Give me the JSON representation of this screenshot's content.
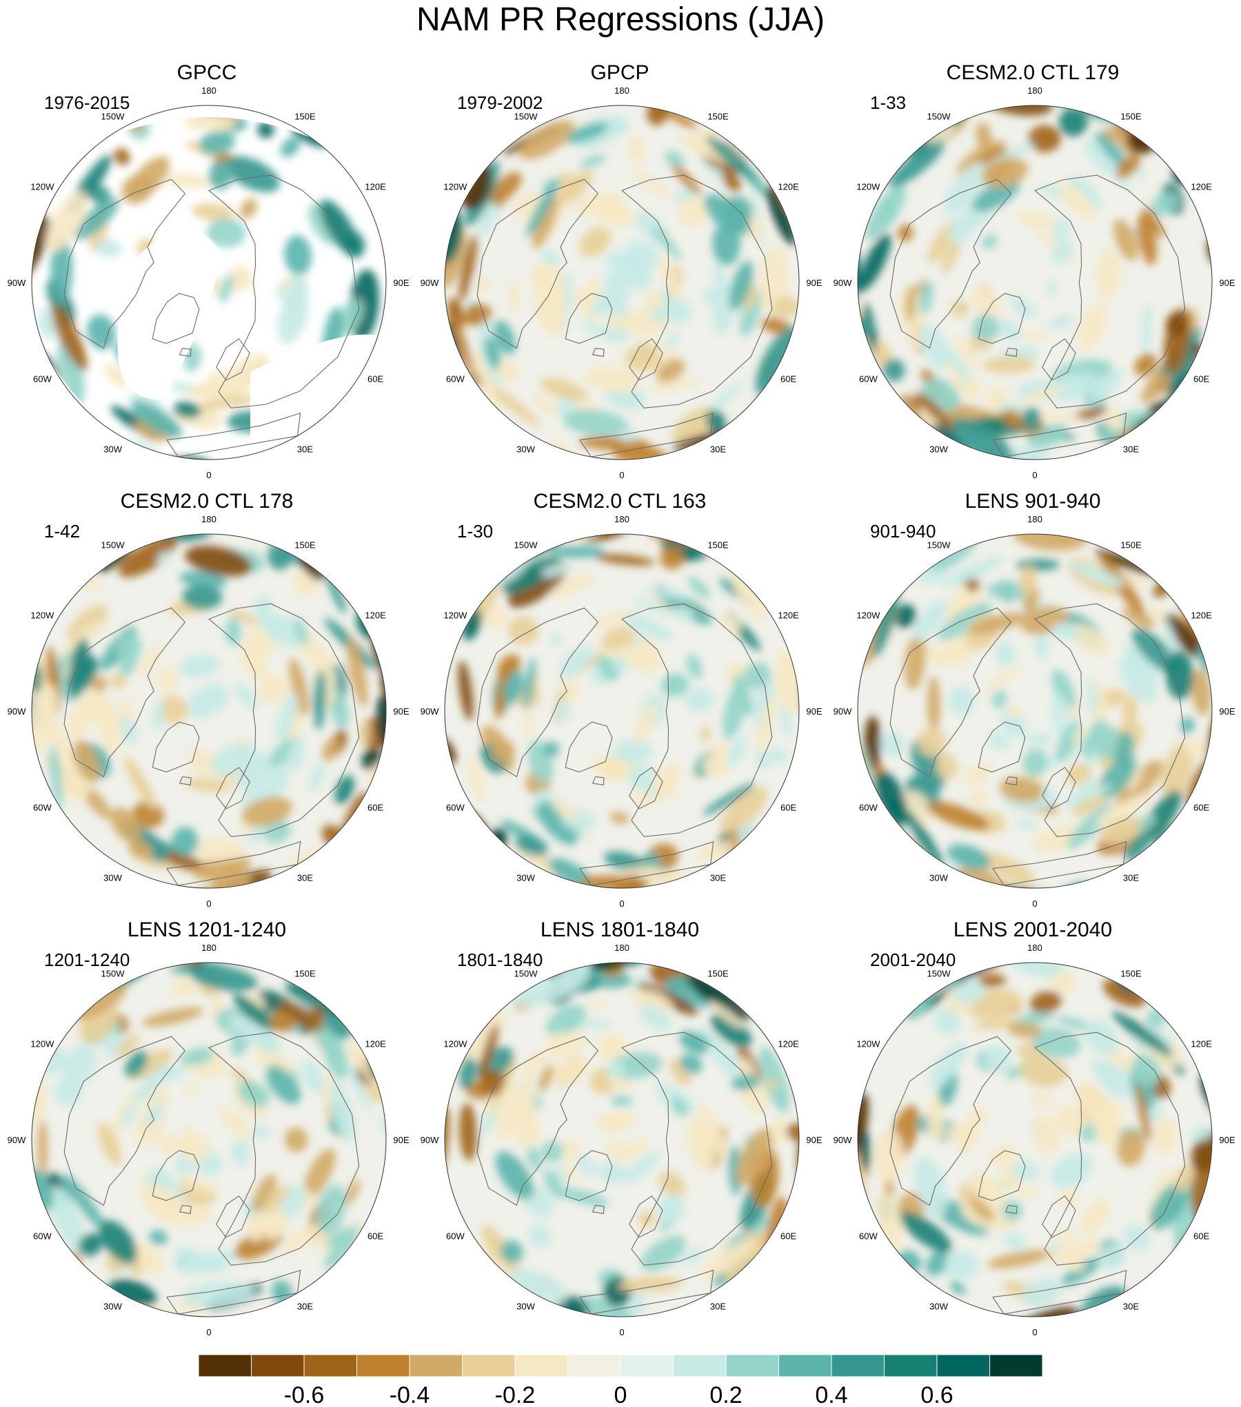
{
  "title": "NAM PR Regressions (JJA)",
  "panels": [
    {
      "id": "gpcc",
      "title": "GPCC",
      "period": "1976-2015",
      "masked": true,
      "seed": 11
    },
    {
      "id": "gpcp",
      "title": "GPCP",
      "period": "1979-2002",
      "masked": false,
      "seed": 23
    },
    {
      "id": "ctl179",
      "title": "CESM2.0 CTL 179",
      "period": "1-33",
      "masked": false,
      "seed": 37
    },
    {
      "id": "ctl178",
      "title": "CESM2.0 CTL 178",
      "period": "1-42",
      "masked": false,
      "seed": 41
    },
    {
      "id": "ctl163",
      "title": "CESM2.0 CTL 163",
      "period": "1-30",
      "masked": false,
      "seed": 53
    },
    {
      "id": "lens901",
      "title": "LENS 901-940",
      "period": "901-940",
      "masked": false,
      "seed": 67
    },
    {
      "id": "lens1201",
      "title": "LENS 1201-1240",
      "period": "1201-1240",
      "masked": false,
      "seed": 71
    },
    {
      "id": "lens1801",
      "title": "LENS 1801-1840",
      "period": "1801-1840",
      "masked": false,
      "seed": 83
    },
    {
      "id": "lens2001",
      "title": "LENS 2001-2040",
      "period": "2001-2040",
      "masked": false,
      "seed": 97
    }
  ],
  "longitude_labels": [
    {
      "text": "180",
      "lon": 180
    },
    {
      "text": "150E",
      "lon": 150
    },
    {
      "text": "120E",
      "lon": 120
    },
    {
      "text": "90E",
      "lon": 90
    },
    {
      "text": "60E",
      "lon": 60
    },
    {
      "text": "30E",
      "lon": 30
    },
    {
      "text": "0",
      "lon": 0
    },
    {
      "text": "30W",
      "lon": -30
    },
    {
      "text": "60W",
      "lon": -60
    },
    {
      "text": "90W",
      "lon": -90
    },
    {
      "text": "120W",
      "lon": -120
    },
    {
      "text": "150W",
      "lon": -150
    }
  ],
  "colorbar": {
    "colors": [
      "#543005",
      "#7f4a0c",
      "#a0631a",
      "#bf812d",
      "#d2a966",
      "#e8cf98",
      "#f6e8c3",
      "#f4efe3",
      "#e3f1ee",
      "#c7eae5",
      "#94d4c9",
      "#5ab4ac",
      "#35978f",
      "#168073",
      "#01665e",
      "#003c30"
    ],
    "tick_labels": [
      "-0.6",
      "-0.4",
      "-0.2",
      "0",
      "0.2",
      "0.4",
      "0.6"
    ],
    "tick_values": [
      -0.6,
      -0.4,
      -0.2,
      0,
      0.2,
      0.4,
      0.6
    ],
    "min": -0.8,
    "max": 0.8
  }
}
